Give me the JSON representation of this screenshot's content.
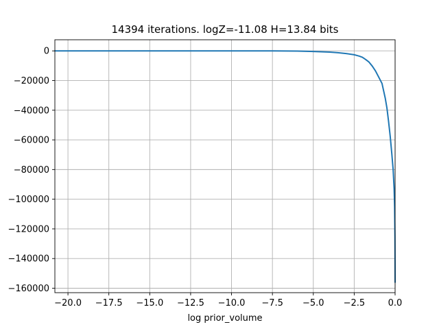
{
  "chart_data": {
    "type": "line",
    "title": "14394 iterations. logZ=-11.08 H=13.84 bits",
    "xlabel": "log prior_volume",
    "ylabel": "",
    "xlim": [
      -20.8,
      0.0
    ],
    "ylim": [
      -163000,
      7500
    ],
    "grid": true,
    "x_ticks": [
      -20.0,
      -17.5,
      -15.0,
      -12.5,
      -10.0,
      -7.5,
      -5.0,
      -2.5,
      0.0
    ],
    "x_tick_labels": [
      "−20.0",
      "−17.5",
      "−15.0",
      "−12.5",
      "−10.0",
      "−7.5",
      "−5.0",
      "−2.5",
      "0.0"
    ],
    "y_ticks": [
      0,
      -20000,
      -40000,
      -60000,
      -80000,
      -100000,
      -120000,
      -140000,
      -160000
    ],
    "y_tick_labels": [
      "0",
      "−20000",
      "−40000",
      "−60000",
      "−80000",
      "−100000",
      "−120000",
      "−140000",
      "−160000"
    ],
    "series": [
      {
        "color": "#1f77b4",
        "x": [
          -20.8,
          -15.0,
          -10.0,
          -7.5,
          -6.0,
          -5.0,
          -4.0,
          -3.5,
          -3.0,
          -2.5,
          -2.2,
          -2.0,
          -1.8,
          -1.6,
          -1.4,
          -1.2,
          -1.0,
          -0.8,
          -0.6,
          -0.5,
          -0.4,
          -0.3,
          -0.2,
          -0.12,
          -0.06,
          -0.03,
          -0.01,
          -0.003,
          0.0
        ],
        "y": [
          0,
          0,
          0,
          0,
          -150,
          -400,
          -800,
          -1200,
          -1800,
          -2600,
          -3500,
          -4300,
          -5800,
          -7500,
          -10200,
          -13500,
          -17700,
          -22000,
          -32000,
          -38500,
          -47500,
          -57500,
          -69500,
          -80000,
          -93000,
          -105000,
          -125000,
          -143000,
          -156000
        ]
      }
    ]
  }
}
